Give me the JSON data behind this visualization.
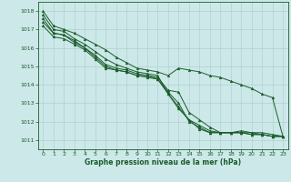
{
  "xlabel": "Graphe pression niveau de la mer (hPa)",
  "background_color": "#cce8e8",
  "grid_color": "#aacccc",
  "line_color": "#1a5c2a",
  "xlim": [
    -0.5,
    23.5
  ],
  "ylim": [
    1010.5,
    1018.5
  ],
  "yticks": [
    1011,
    1012,
    1013,
    1014,
    1015,
    1016,
    1017,
    1018
  ],
  "xticks": [
    0,
    1,
    2,
    3,
    4,
    5,
    6,
    7,
    8,
    9,
    10,
    11,
    12,
    13,
    14,
    15,
    16,
    17,
    18,
    19,
    20,
    21,
    22,
    23
  ],
  "series": [
    [
      1018.0,
      1017.2,
      1017.0,
      1016.8,
      1016.5,
      1016.2,
      1015.9,
      1015.5,
      1015.2,
      1014.9,
      1014.8,
      1014.7,
      1014.5,
      1014.9,
      1014.8,
      1014.7,
      1014.5,
      1014.4,
      1014.2,
      1014.0,
      1013.8,
      1013.5,
      1013.3,
      1011.2
    ],
    [
      1017.8,
      1017.0,
      1016.9,
      1016.5,
      1016.2,
      1015.8,
      1015.4,
      1015.1,
      1014.9,
      1014.7,
      1014.6,
      1014.5,
      1013.5,
      1012.8,
      1012.1,
      1011.8,
      1011.5,
      1011.4,
      1011.4,
      1011.4,
      1011.3,
      1011.3,
      1011.2,
      1011.2
    ],
    [
      1017.6,
      1016.8,
      1016.7,
      1016.4,
      1016.0,
      1015.6,
      1015.1,
      1014.9,
      1014.8,
      1014.6,
      1014.5,
      1014.4,
      1013.7,
      1013.6,
      1012.5,
      1012.1,
      1011.7,
      1011.4,
      1011.4,
      1011.5,
      1011.4,
      1011.4,
      1011.3,
      1011.2
    ],
    [
      1017.4,
      1016.8,
      1016.7,
      1016.3,
      1016.0,
      1015.5,
      1015.0,
      1014.8,
      1014.7,
      1014.5,
      1014.5,
      1014.3,
      1013.6,
      1013.0,
      1012.0,
      1011.7,
      1011.4,
      1011.4,
      1011.4,
      1011.4,
      1011.4,
      1011.3,
      1011.2,
      1011.2
    ],
    [
      1017.2,
      1016.6,
      1016.5,
      1016.2,
      1015.9,
      1015.4,
      1014.9,
      1014.8,
      1014.7,
      1014.5,
      1014.4,
      1014.3,
      1013.5,
      1012.7,
      1012.1,
      1011.6,
      1011.4,
      1011.4,
      1011.4,
      1011.4,
      1011.3,
      1011.3,
      1011.2,
      1011.2
    ]
  ]
}
